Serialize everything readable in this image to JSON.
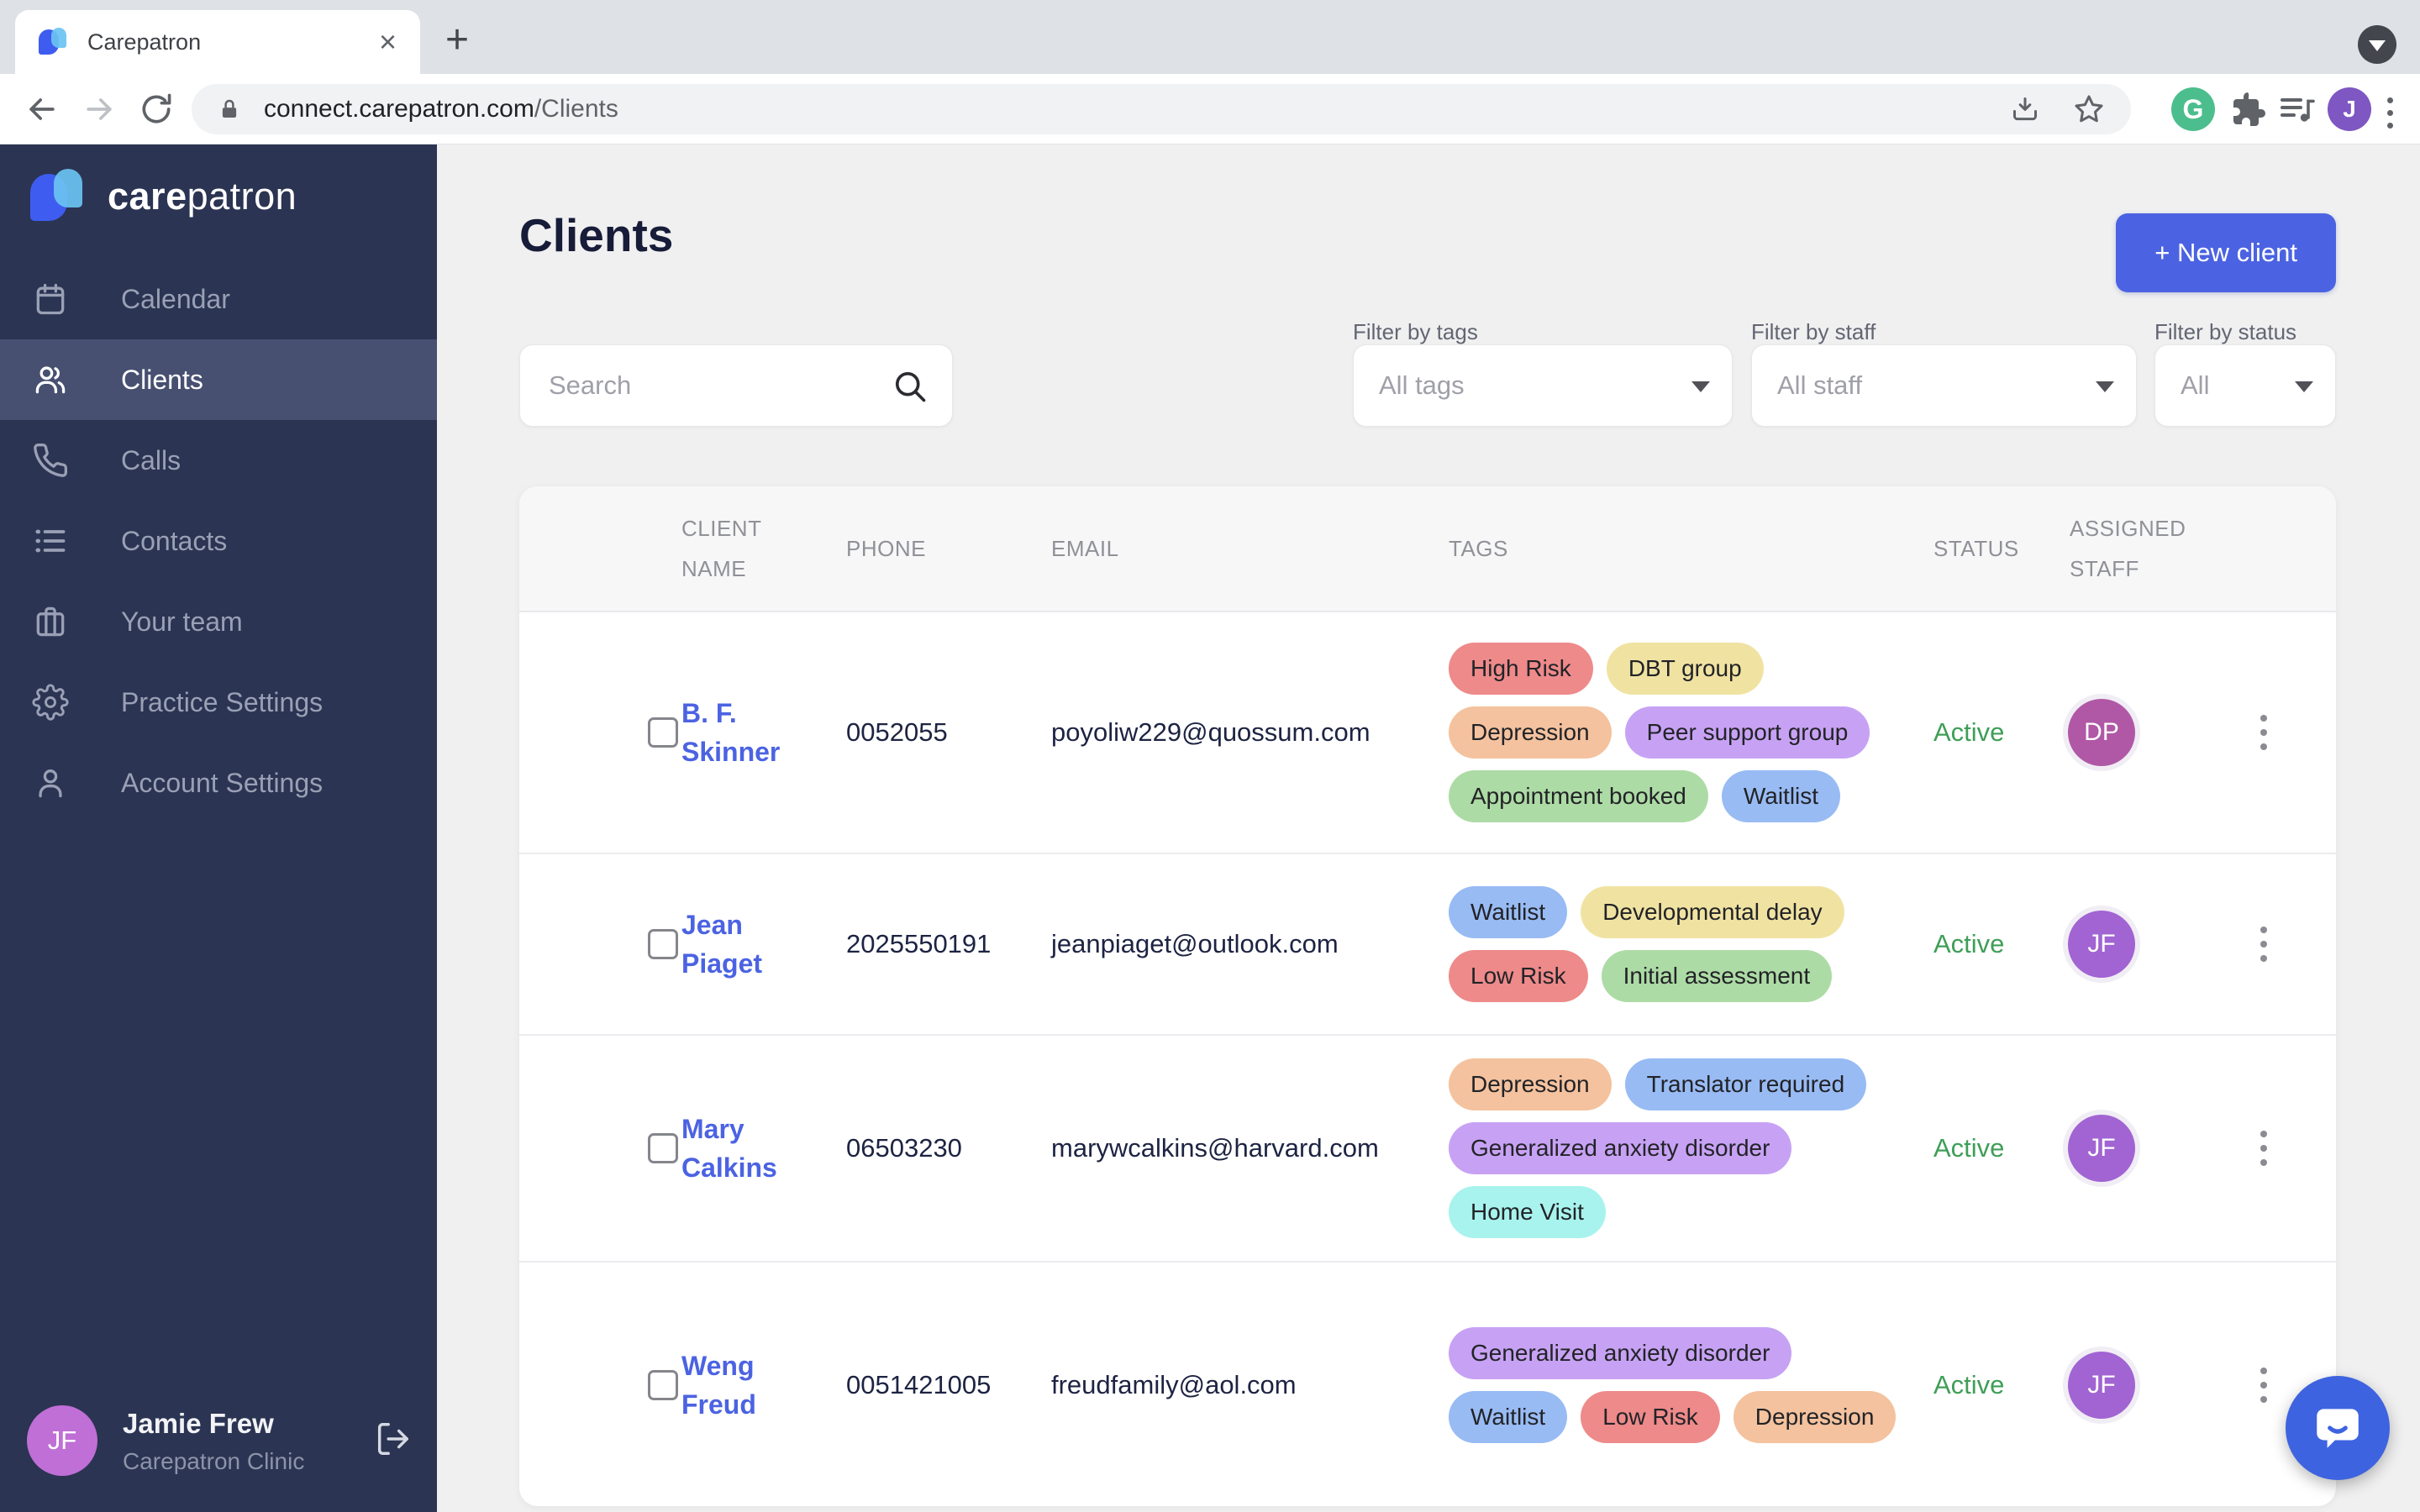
{
  "browser": {
    "tab": {
      "title": "Carepatron",
      "close_glyph": "×",
      "new_tab_glyph": "+"
    },
    "url": {
      "host": "connect.carepatron.com",
      "path": "/Clients"
    },
    "grammarly_glyph": "G",
    "profile_initial": "J"
  },
  "sidebar": {
    "logo": {
      "bold": "care",
      "rest": "patron"
    },
    "items": [
      {
        "label": "Calendar"
      },
      {
        "label": "Clients"
      },
      {
        "label": "Calls"
      },
      {
        "label": "Contacts"
      },
      {
        "label": "Your team"
      },
      {
        "label": "Practice Settings"
      },
      {
        "label": "Account Settings"
      }
    ],
    "user": {
      "initials": "JF",
      "name": "Jamie Frew",
      "org": "Carepatron Clinic",
      "avatar_color": "#c06fd6"
    }
  },
  "page": {
    "title": "Clients",
    "new_client": "+  New client"
  },
  "filters": {
    "search_placeholder": "Search",
    "groups": [
      {
        "label": "Filter by tags",
        "value": "All tags"
      },
      {
        "label": "Filter by staff",
        "value": "All staff"
      },
      {
        "label": "Filter by status",
        "value": "All"
      }
    ]
  },
  "table": {
    "headers": {
      "client": "CLIENT NAME",
      "phone": "PHONE",
      "email": "EMAIL",
      "tags": "TAGS",
      "status": "STATUS",
      "assigned": "ASSIGNED STAFF"
    },
    "clients": [
      {
        "name": "B. F. Skinner",
        "phone": "0052055",
        "email": "poyoliw229@quossum.com",
        "status": "Active",
        "status_color": "#3f9e57",
        "staff": {
          "initials": "DP",
          "color": "#b058a6"
        },
        "tags": [
          {
            "label": "High Risk",
            "color": "#ee8a8a"
          },
          {
            "label": "DBT group",
            "color": "#f0e3a2"
          },
          {
            "label": "Depression",
            "color": "#f4c29e"
          },
          {
            "label": "Peer support group",
            "color": "#c7a2f4"
          },
          {
            "label": "Appointment booked",
            "color": "#addba5"
          },
          {
            "label": "Waitlist",
            "color": "#98bbf4"
          }
        ]
      },
      {
        "name": "Jean Piaget",
        "phone": "2025550191",
        "email": "jeanpiaget@outlook.com",
        "status": "Active",
        "status_color": "#3f9e57",
        "staff": {
          "initials": "JF",
          "color": "#a164d2"
        },
        "tags": [
          {
            "label": "Waitlist",
            "color": "#98bbf4"
          },
          {
            "label": "Developmental delay",
            "color": "#f0e3a2"
          },
          {
            "label": "Low Risk",
            "color": "#ee8a8a"
          },
          {
            "label": "Initial assessment",
            "color": "#addba5"
          }
        ]
      },
      {
        "name": "Mary Calkins",
        "phone": "06503230",
        "email": "marywcalkins@harvard.com",
        "status": "Active",
        "status_color": "#3f9e57",
        "staff": {
          "initials": "JF",
          "color": "#a164d2"
        },
        "tags": [
          {
            "label": "Depression",
            "color": "#f4c29e"
          },
          {
            "label": "Translator required",
            "color": "#98bbf4"
          },
          {
            "label": "Generalized anxiety disorder",
            "color": "#c7a2f4"
          },
          {
            "label": "Home Visit",
            "color": "#a8f3ed"
          }
        ]
      },
      {
        "name": "Weng Freud",
        "phone": "0051421005",
        "email": "freudfamily@aol.com",
        "status": "Active",
        "status_color": "#3f9e57",
        "staff": {
          "initials": "JF",
          "color": "#a164d2"
        },
        "tags": [
          {
            "label": "Generalized anxiety disorder",
            "color": "#c7a2f4"
          },
          {
            "label": "Waitlist",
            "color": "#98bbf4"
          },
          {
            "label": "Low Risk",
            "color": "#ee8a8a"
          },
          {
            "label": "Depression",
            "color": "#f4c29e"
          }
        ]
      }
    ]
  }
}
